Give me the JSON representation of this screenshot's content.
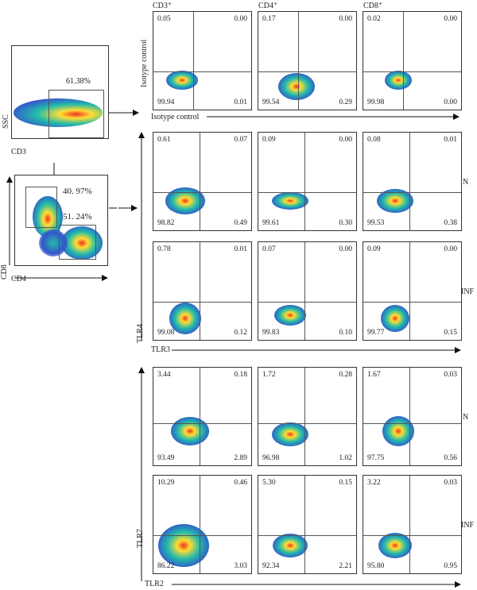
{
  "left_plots": {
    "top": {
      "x_label": "CD3",
      "y_label": "SSC",
      "gate_pct": "61.38%"
    },
    "bottom": {
      "x_label": "CD4",
      "y_label": "CD8",
      "gate1_pct": "40. 97%",
      "gate2_pct": "51. 24%"
    }
  },
  "column_headers": [
    "CD3⁺",
    "CD4⁺",
    "CD8⁺"
  ],
  "isotype": {
    "x_label": "Isotype control",
    "y_label": "Isotype control"
  },
  "block1": {
    "x_label": "TLR3",
    "y_label": "TLR4"
  },
  "block2": {
    "x_label": "TLR2",
    "y_label": "TLR7"
  },
  "row_labels": {
    "N": "N",
    "INF": "INF"
  },
  "rows": [
    {
      "name": "isotype",
      "cells": [
        [
          "0.05",
          "0.00",
          "99.94",
          "0.01"
        ],
        [
          "0.17",
          "0.00",
          "99.54",
          "0.29"
        ],
        [
          "0.02",
          "0.00",
          "99.98",
          "0.00"
        ]
      ]
    },
    {
      "name": "tlr34_N",
      "cells": [
        [
          "0.61",
          "0.07",
          "98.82",
          "0.49"
        ],
        [
          "0.09",
          "0.00",
          "99.61",
          "0.30"
        ],
        [
          "0.08",
          "0.01",
          "99.53",
          "0.38"
        ]
      ]
    },
    {
      "name": "tlr34_INF",
      "cells": [
        [
          "0.78",
          "0.01",
          "99.08",
          "0.12"
        ],
        [
          "0.07",
          "0.00",
          "99.83",
          "0.10"
        ],
        [
          "0.09",
          "0.00",
          "99.77",
          "0.15"
        ]
      ]
    },
    {
      "name": "tlr27_N",
      "cells": [
        [
          "3.44",
          "0.18",
          "93.49",
          "2.89"
        ],
        [
          "1.72",
          "0.28",
          "96.98",
          "1.02"
        ],
        [
          "1.67",
          "0.03",
          "97.75",
          "0.56"
        ]
      ]
    },
    {
      "name": "tlr27_INF",
      "cells": [
        [
          "10.29",
          "0.46",
          "86.22",
          "3.03"
        ],
        [
          "5.30",
          "0.15",
          "92.34",
          "2.21"
        ],
        [
          "3.22",
          "0.03",
          "95.80",
          "0.95"
        ]
      ]
    }
  ],
  "colors": {
    "density_low": "#3355cc",
    "density_mid": "#22bbaa",
    "density_high": "#ffdd33",
    "density_core": "#ee3322"
  }
}
